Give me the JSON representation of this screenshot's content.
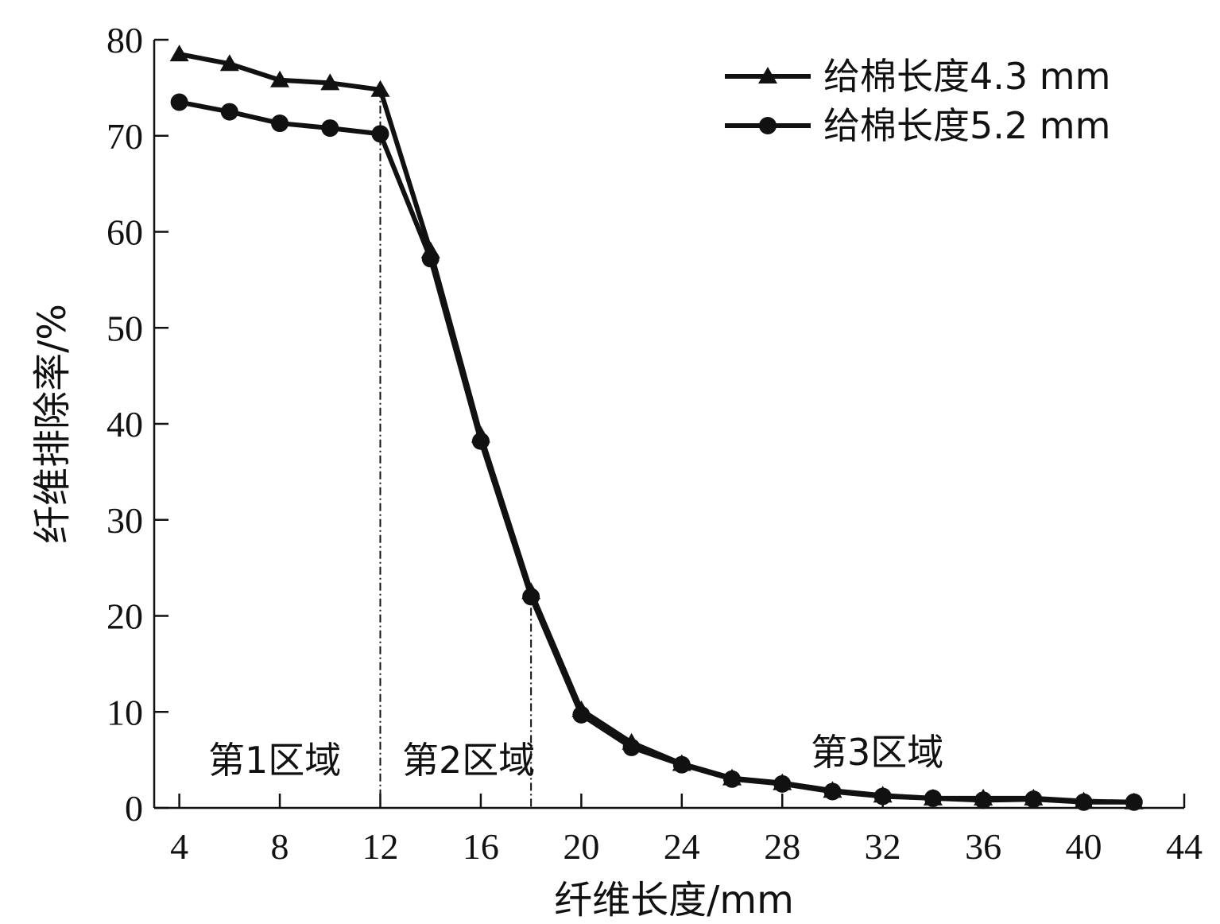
{
  "chart_data": {
    "type": "line",
    "xlabel": "纤维长度/mm",
    "ylabel": "纤维排除率/%",
    "xlim": [
      3,
      44
    ],
    "ylim": [
      0,
      80
    ],
    "xticks": [
      4,
      8,
      12,
      16,
      20,
      24,
      28,
      32,
      36,
      40,
      44
    ],
    "yticks": [
      0,
      10,
      20,
      30,
      40,
      50,
      60,
      70,
      80
    ],
    "grid": false,
    "legend_position": "top-right",
    "series": [
      {
        "name": "给棉长度4.3 mm",
        "marker": "triangle",
        "x": [
          4,
          6,
          8,
          10,
          12,
          14,
          16,
          18,
          20,
          22,
          24,
          26,
          28,
          30,
          32,
          34,
          36,
          38,
          40,
          42
        ],
        "y": [
          78.5,
          77.5,
          75.8,
          75.5,
          74.8,
          58.0,
          38.8,
          22.5,
          10.2,
          6.8,
          4.6,
          3.1,
          2.6,
          1.8,
          1.3,
          1.0,
          1.0,
          1.0,
          0.7,
          0.6
        ]
      },
      {
        "name": "给棉长度5.2 mm",
        "marker": "circle",
        "x": [
          4,
          6,
          8,
          10,
          12,
          14,
          16,
          18,
          20,
          22,
          24,
          26,
          28,
          30,
          32,
          34,
          36,
          38,
          40,
          42
        ],
        "y": [
          73.5,
          72.5,
          71.3,
          70.8,
          70.2,
          57.2,
          38.2,
          22.0,
          9.7,
          6.3,
          4.5,
          3.0,
          2.5,
          1.7,
          1.2,
          1.0,
          0.8,
          0.9,
          0.6,
          0.6
        ]
      }
    ],
    "dividers": [
      {
        "x": 12,
        "style": "dash-dot"
      },
      {
        "x": 18,
        "style": "dash-dot"
      }
    ],
    "region_labels": [
      "第1区域",
      "第2区域",
      "第3区域"
    ]
  }
}
